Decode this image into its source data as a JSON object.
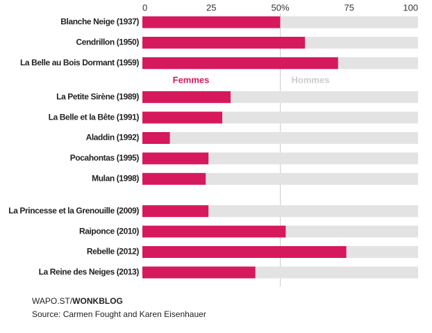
{
  "chart_data": {
    "type": "stacked-barh",
    "categories": [
      "Blanche Neige (1937)",
      "Cendrillon (1950)",
      "La Belle au Bois Dormant (1959)",
      "La Petite Sirène (1989)",
      "La Belle et la Bête (1991)",
      "Aladdin (1992)",
      "Pocahontas (1995)",
      "Mulan (1998)",
      "La Princesse et la Grenouille (2009)",
      "Raiponce (2010)",
      "Rebelle (2012)",
      "La Reine des Neiges (2013)"
    ],
    "series": [
      {
        "name": "Femmes",
        "color": "#d6195c",
        "values": [
          50,
          59,
          71,
          32,
          29,
          10,
          24,
          23,
          24,
          52,
          74,
          41
        ]
      },
      {
        "name": "Hommes",
        "color": "#e3e3e3",
        "values": [
          50,
          41,
          29,
          68,
          71,
          90,
          76,
          77,
          76,
          48,
          26,
          59
        ]
      }
    ],
    "xlim": [
      0,
      100
    ],
    "xticks": [
      0,
      25,
      {
        "value": 50,
        "label": "50%"
      },
      75,
      100
    ],
    "credit_prefix": "WAPO.ST/",
    "credit_bold": "WONKBLOG",
    "source": "Source: Carmen Fought and Karen Eisenhauer"
  }
}
